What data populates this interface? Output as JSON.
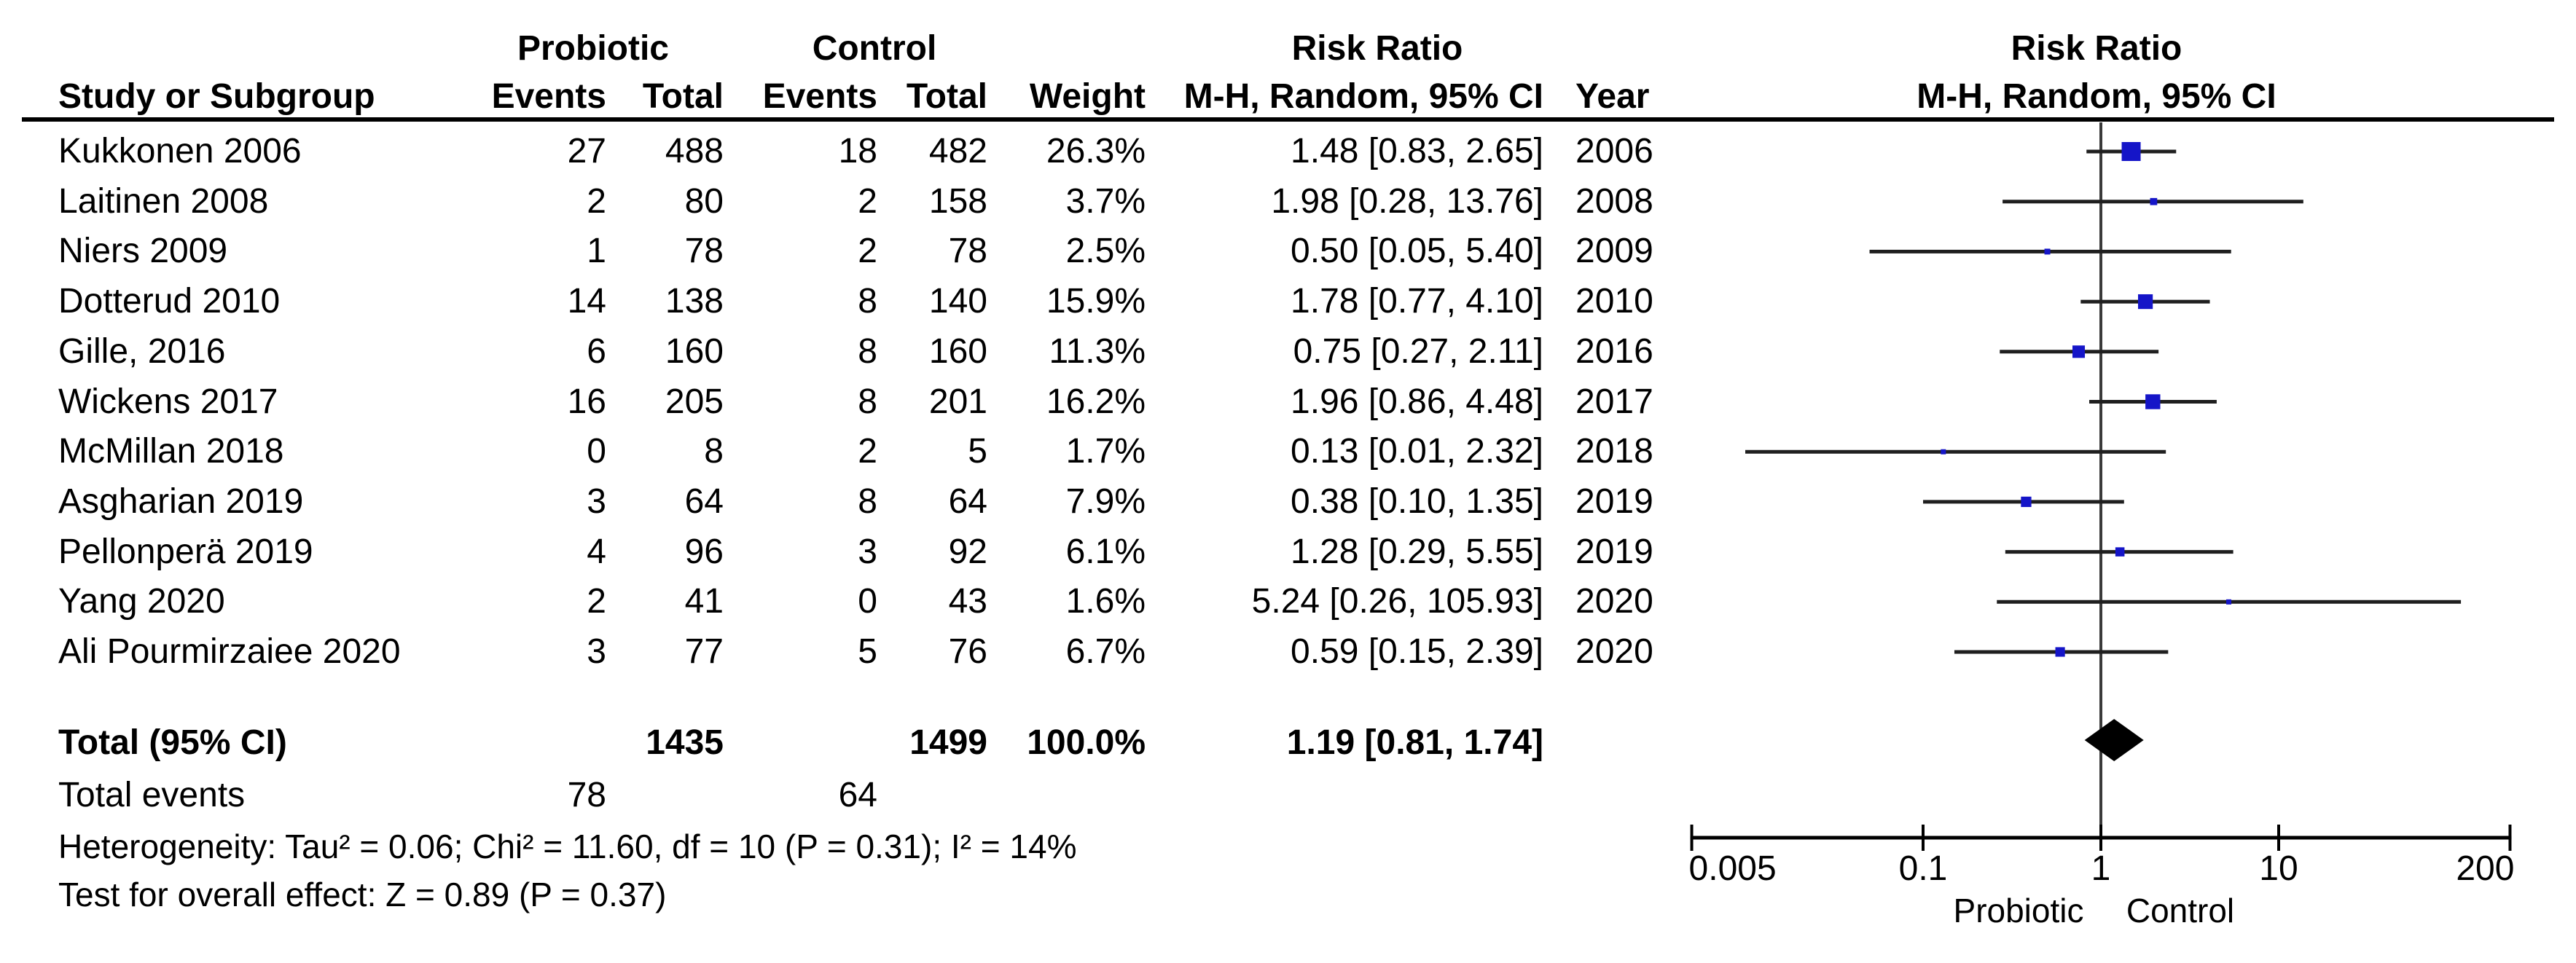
{
  "header": {
    "group_probiotic": "Probiotic",
    "group_control": "Control",
    "risk_ratio": "Risk Ratio",
    "method": "M-H, Random, 95% CI",
    "col_study": "Study or Subgroup",
    "col_events": "Events",
    "col_total": "Total",
    "col_weight": "Weight",
    "col_year": "Year"
  },
  "chart_data": {
    "type": "forest",
    "effect_measure": "Risk Ratio",
    "model": "M-H, Random, 95% CI",
    "studies": [
      {
        "name": "Kukkonen 2006",
        "events1": 27,
        "total1": 488,
        "events2": 18,
        "total2": 482,
        "weight": "26.3%",
        "weight_pct": 26.3,
        "rr": 1.48,
        "lo": 0.83,
        "hi": 2.65,
        "ci_text": "1.48 [0.83, 2.65]",
        "year": "2006"
      },
      {
        "name": "Laitinen 2008",
        "events1": 2,
        "total1": 80,
        "events2": 2,
        "total2": 158,
        "weight": "3.7%",
        "weight_pct": 3.7,
        "rr": 1.98,
        "lo": 0.28,
        "hi": 13.76,
        "ci_text": "1.98 [0.28, 13.76]",
        "year": "2008"
      },
      {
        "name": "Niers 2009",
        "events1": 1,
        "total1": 78,
        "events2": 2,
        "total2": 78,
        "weight": "2.5%",
        "weight_pct": 2.5,
        "rr": 0.5,
        "lo": 0.05,
        "hi": 5.4,
        "ci_text": "0.50 [0.05, 5.40]",
        "year": "2009"
      },
      {
        "name": "Dotterud 2010",
        "events1": 14,
        "total1": 138,
        "events2": 8,
        "total2": 140,
        "weight": "15.9%",
        "weight_pct": 15.9,
        "rr": 1.78,
        "lo": 0.77,
        "hi": 4.1,
        "ci_text": "1.78 [0.77, 4.10]",
        "year": "2010"
      },
      {
        "name": "Gille, 2016",
        "events1": 6,
        "total1": 160,
        "events2": 8,
        "total2": 160,
        "weight": "11.3%",
        "weight_pct": 11.3,
        "rr": 0.75,
        "lo": 0.27,
        "hi": 2.11,
        "ci_text": "0.75 [0.27, 2.11]",
        "year": "2016"
      },
      {
        "name": "Wickens 2017",
        "events1": 16,
        "total1": 205,
        "events2": 8,
        "total2": 201,
        "weight": "16.2%",
        "weight_pct": 16.2,
        "rr": 1.96,
        "lo": 0.86,
        "hi": 4.48,
        "ci_text": "1.96 [0.86, 4.48]",
        "year": "2017"
      },
      {
        "name": "McMillan 2018",
        "events1": 0,
        "total1": 8,
        "events2": 2,
        "total2": 5,
        "weight": "1.7%",
        "weight_pct": 1.7,
        "rr": 0.13,
        "lo": 0.01,
        "hi": 2.32,
        "ci_text": "0.13 [0.01, 2.32]",
        "year": "2018"
      },
      {
        "name": "Asgharian 2019",
        "events1": 3,
        "total1": 64,
        "events2": 8,
        "total2": 64,
        "weight": "7.9%",
        "weight_pct": 7.9,
        "rr": 0.38,
        "lo": 0.1,
        "hi": 1.35,
        "ci_text": "0.38 [0.10, 1.35]",
        "year": "2019"
      },
      {
        "name": "Pellonperä 2019",
        "events1": 4,
        "total1": 96,
        "events2": 3,
        "total2": 92,
        "weight": "6.1%",
        "weight_pct": 6.1,
        "rr": 1.28,
        "lo": 0.29,
        "hi": 5.55,
        "ci_text": "1.28 [0.29, 5.55]",
        "year": "2019"
      },
      {
        "name": "Yang 2020",
        "events1": 2,
        "total1": 41,
        "events2": 0,
        "total2": 43,
        "weight": "1.6%",
        "weight_pct": 1.6,
        "rr": 5.24,
        "lo": 0.26,
        "hi": 105.93,
        "ci_text": "5.24 [0.26, 105.93]",
        "year": "2020"
      },
      {
        "name": "Ali Pourmirzaiee 2020",
        "events1": 3,
        "total1": 77,
        "events2": 5,
        "total2": 76,
        "weight": "6.7%",
        "weight_pct": 6.7,
        "rr": 0.59,
        "lo": 0.15,
        "hi": 2.39,
        "ci_text": "0.59 [0.15, 2.39]",
        "year": "2020"
      }
    ],
    "total": {
      "label": "Total (95% CI)",
      "total1": 1435,
      "total2": 1499,
      "weight": "100.0%",
      "rr": 1.19,
      "lo": 0.81,
      "hi": 1.74,
      "ci_text": "1.19 [0.81, 1.74]"
    },
    "total_events": {
      "label": "Total events",
      "events1": 78,
      "events2": 64
    },
    "heterogeneity": "Heterogeneity: Tau² = 0.06; Chi² = 11.60, df = 10 (P = 0.31); I² = 14%",
    "overall_effect": "Test for overall effect: Z = 0.89 (P = 0.37)",
    "axis": {
      "scale": "log",
      "min": 0.005,
      "max": 200,
      "tick_labels": [
        "0.005",
        "0.1",
        "1",
        "10",
        "200"
      ],
      "tick_values": [
        0.005,
        0.1,
        1,
        10,
        200
      ]
    },
    "footer_labels": {
      "left": "Probiotic",
      "right": "Control"
    },
    "colors": {
      "square": "#1515c8",
      "ci_line": "#1f1f1f",
      "diamond": "#000000",
      "centerline": "#3a3a3a",
      "axis": "#000000"
    }
  }
}
